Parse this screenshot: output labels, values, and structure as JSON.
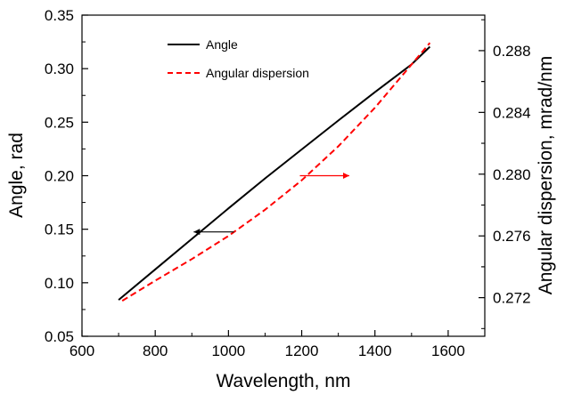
{
  "chart_data": {
    "type": "line",
    "xlabel": "Wavelength, nm",
    "ylabel": "Angle, rad",
    "y2label": "Angular dispersion, mrad/nm",
    "xlim": [
      600,
      1700
    ],
    "ylim": [
      0.05,
      0.35
    ],
    "y2lim": [
      0.2695,
      0.2903
    ],
    "x_ticks": [
      "600",
      "800",
      "1000",
      "1200",
      "1400",
      "1600"
    ],
    "y_ticks": [
      "0.05",
      "0.10",
      "0.15",
      "0.20",
      "0.25",
      "0.30",
      "0.35"
    ],
    "y2_ticks": [
      "0.272",
      "0.276",
      "0.280",
      "0.284",
      "0.288"
    ],
    "grid": false,
    "legend_position": "top-center",
    "series": [
      {
        "name": "Angle",
        "axis": "left",
        "color": "#000000",
        "style": "solid",
        "x": [
          700,
          800,
          900,
          1000,
          1100,
          1200,
          1300,
          1400,
          1500,
          1550
        ],
        "y": [
          0.084,
          0.1125,
          0.141,
          0.1695,
          0.1975,
          0.2245,
          0.2515,
          0.278,
          0.304,
          0.3205
        ]
      },
      {
        "name": "Angular dispersion",
        "axis": "right",
        "color": "#ff0000",
        "style": "dashed",
        "x": [
          710,
          800,
          900,
          1000,
          1100,
          1200,
          1300,
          1400,
          1500,
          1550
        ],
        "y": [
          0.2718,
          0.2731,
          0.2745,
          0.276,
          0.2777,
          0.2796,
          0.2818,
          0.2843,
          0.2871,
          0.2885
        ]
      }
    ],
    "annotations": [
      {
        "type": "arrow",
        "direction": "left",
        "color": "#000000",
        "x_from": 1015,
        "x_to": 905,
        "y": 0.1475,
        "axis": "left"
      },
      {
        "type": "arrow",
        "direction": "right",
        "color": "#ff0000",
        "x_from": 1195,
        "x_to": 1330,
        "y": 0.2799,
        "axis": "right"
      }
    ]
  }
}
